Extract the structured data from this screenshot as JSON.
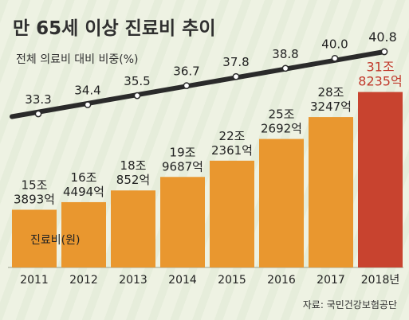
{
  "title": "만 65세 이상 진료비 추이",
  "source": "자료: 국민건강보험공단",
  "chart_data": {
    "type": "bar",
    "categories": [
      "2011",
      "2012",
      "2013",
      "2014",
      "2015",
      "2016",
      "2017",
      "2018년"
    ],
    "series": [
      {
        "name": "진료비(원)",
        "type": "bar",
        "values": [
          15.3893,
          16.4494,
          18.0852,
          19.9687,
          22.2361,
          25.2692,
          28.3247,
          31.8235
        ],
        "labels": [
          [
            "15조",
            "3893억"
          ],
          [
            "16조",
            "4494억"
          ],
          [
            "18조",
            "852억"
          ],
          [
            "19조",
            "9687억"
          ],
          [
            "22조",
            "2361억"
          ],
          [
            "25조",
            "2692억"
          ],
          [
            "28조",
            "3247억"
          ],
          [
            "31조",
            "8235억"
          ]
        ]
      },
      {
        "name": "전체 의료비 대비 비중(%)",
        "type": "line",
        "values": [
          33.3,
          34.4,
          35.5,
          36.7,
          37.8,
          38.8,
          40.0,
          40.8
        ],
        "labels": [
          "33.3",
          "34.4",
          "35.5",
          "36.7",
          "37.8",
          "38.8",
          "40.0",
          "40.8"
        ]
      }
    ],
    "colors": {
      "bar": "#e9972f",
      "bar_highlight": "#c8432f",
      "line": "#2a2a2a",
      "label_highlight": "#c13a2c"
    },
    "legend": {
      "bar": "진료비(원)",
      "line": "전체 의료비 대비 비중(%)"
    }
  }
}
